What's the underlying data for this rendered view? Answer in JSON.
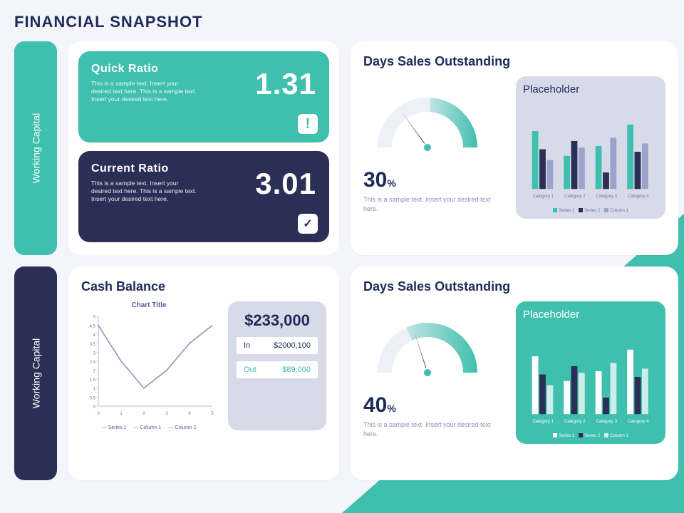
{
  "page": {
    "title": "FINANCIAL SNAPSHOT",
    "background_color": "#f3f5fb",
    "accent_triangle_color": "#3fbfad"
  },
  "side_labels": [
    {
      "text": "Working Capital",
      "bg": "#3fbfad",
      "text_color": "#ffffff"
    },
    {
      "text": "Working Capital",
      "bg": "#2b2e55",
      "text_color": "#ffffff"
    }
  ],
  "ratios": {
    "quick": {
      "title": "Quick  Ratio",
      "desc": "This is a sample text. Insert your desired text here. This is a sample text. Insert your desired text here.",
      "value": "1.31",
      "bg": "#3fbfad",
      "badge_type": "alert"
    },
    "current": {
      "title": "Current Ratio",
      "desc": "This is a sample text. Insert your desired text here. This is a sample text. Insert your desired text here.",
      "value": "3.01",
      "bg": "#2b2e55",
      "badge_type": "check"
    }
  },
  "dso1": {
    "title": "Days Sales Outstanding",
    "percent_value": "30",
    "percent_unit": "%",
    "note": "This is a sample text.\nInsert your desired text here.",
    "gauge": {
      "fill_ratio": 0.3,
      "arc_fill_color": "#3fbfad",
      "arc_bg_color": "#eef0f7",
      "needle_color": "#2b2e55",
      "knob_color": "#3fbfad"
    },
    "chart": {
      "box_bg": "#d7dbe9",
      "title": "Placeholder",
      "title_color": "#1e2a5a",
      "type": "bar",
      "categories": [
        "Category 1",
        "Category 2",
        "Category 3",
        "Category 4"
      ],
      "series": [
        {
          "name": "Series 1",
          "color": "#3fbfad",
          "values": [
            70,
            40,
            52,
            78
          ]
        },
        {
          "name": "Series 2",
          "color": "#2b2e55",
          "values": [
            48,
            58,
            20,
            45
          ]
        },
        {
          "name": "Column 1",
          "color": "#9aa3c9",
          "values": [
            35,
            50,
            62,
            55
          ]
        }
      ],
      "ylim": [
        0,
        100
      ],
      "category_label_color": "#6b739c",
      "legend_text_color": "#6b739c"
    }
  },
  "cash": {
    "title": "Cash Balance",
    "line_chart": {
      "title": "Chart Title",
      "x": [
        0,
        1,
        2,
        3,
        4,
        5
      ],
      "series": [
        {
          "name": "Series 1",
          "color": "#3fbfad",
          "y": [
            4.5,
            2.5,
            1.0,
            2.0,
            3.5,
            4.5
          ]
        },
        {
          "name": "Column 1",
          "color": "#2b2e55",
          "y": [
            4.5,
            2.5,
            1.0,
            2.0,
            3.5,
            4.5
          ]
        },
        {
          "name": "Column 2",
          "color": "#9aa3c9",
          "y": [
            4.5,
            2.5,
            1.0,
            2.0,
            3.5,
            4.5
          ]
        }
      ],
      "xlim": [
        0,
        5
      ],
      "ylim": [
        0,
        5
      ],
      "ytick_step": 0.5,
      "axis_color": "#b7bdd6",
      "tick_label_color": "#6b739c"
    },
    "balance": {
      "box_bg": "#d7dbe9",
      "total": "$233,000",
      "in_label": "In",
      "in_value": "$2000,100",
      "out_label": "Out",
      "out_value": "$89,000",
      "in_color": "#1e2a5a",
      "out_color": "#3fbfad"
    }
  },
  "dso2": {
    "title": "Days Sales Outstanding",
    "percent_value": "40",
    "percent_unit": "%",
    "note": "This is a sample text.\nInsert your desired text here.",
    "gauge": {
      "fill_ratio": 0.4,
      "arc_fill_color": "#3fbfad",
      "arc_bg_color": "#eef0f7",
      "needle_color": "#2b2e55",
      "knob_color": "#3fbfad"
    },
    "chart": {
      "box_bg": "#3fbfad",
      "title": "Placeholder",
      "title_color": "#ffffff",
      "type": "bar",
      "categories": [
        "Category 1",
        "Category 2",
        "Category 3",
        "Category 4"
      ],
      "series": [
        {
          "name": "Series 1",
          "color": "#ffffff",
          "values": [
            70,
            40,
            52,
            78
          ]
        },
        {
          "name": "Series 2",
          "color": "#2b2e55",
          "values": [
            48,
            58,
            20,
            45
          ]
        },
        {
          "name": "Column 1",
          "color": "#cdeee8",
          "values": [
            35,
            50,
            62,
            55
          ]
        }
      ],
      "ylim": [
        0,
        100
      ],
      "category_label_color": "#ffffff",
      "legend_text_color": "#ffffff"
    }
  }
}
